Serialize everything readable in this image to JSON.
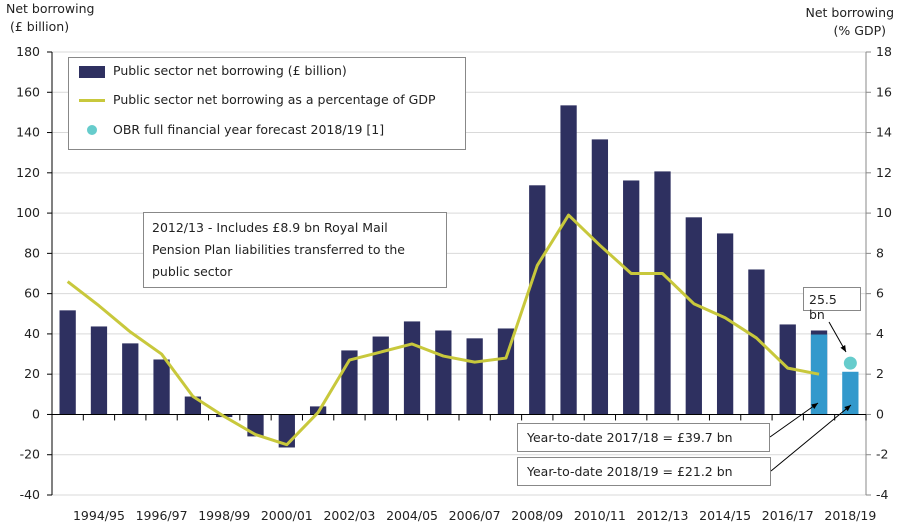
{
  "chart_data": {
    "type": "bar",
    "ylabel_left": "Net borrowing (£ billion)",
    "ylabel_left_lines": [
      "Net borrowing",
      "(£ billion)"
    ],
    "ylabel_right_lines": [
      "Net borrowing",
      "(% GDP)"
    ],
    "ylim_left": [
      -40,
      180
    ],
    "ylim_right": [
      -4,
      18
    ],
    "yticks_left": [
      180,
      160,
      140,
      120,
      100,
      80,
      60,
      40,
      20,
      0,
      -20,
      -40
    ],
    "yticks_right": [
      18,
      16,
      14,
      12,
      10,
      8,
      6,
      4,
      2,
      0,
      -2,
      -4
    ],
    "grid": true,
    "categories": [
      "1993/94",
      "1994/95",
      "1995/96",
      "1996/97",
      "1997/98",
      "1998/99",
      "1999/00",
      "2000/01",
      "2001/02",
      "2002/03",
      "2003/04",
      "2004/05",
      "2005/06",
      "2006/07",
      "2007/08",
      "2008/09",
      "2009/10",
      "2010/11",
      "2011/12",
      "2012/13",
      "2013/14",
      "2014/15",
      "2015/16",
      "2016/17",
      "2017/18",
      "2018/19"
    ],
    "xtick_labels": [
      "1994/95",
      "1996/97",
      "1998/99",
      "2000/01",
      "2002/03",
      "2004/05",
      "2006/07",
      "2008/09",
      "2010/11",
      "2012/13",
      "2014/15",
      "2016/17",
      "2018/19"
    ],
    "series": [
      {
        "name": "Public sector net borrowing (£ billion)",
        "type": "bar",
        "axis": "left",
        "color": "#2e3060",
        "values": [
          51.7,
          43.7,
          35.3,
          27.3,
          8.9,
          -1.3,
          -10.9,
          -16.4,
          4.0,
          31.8,
          38.7,
          46.2,
          41.7,
          37.8,
          42.7,
          113.8,
          153.5,
          136.6,
          116.2,
          120.7,
          97.9,
          89.9,
          72.0,
          44.7,
          41.7,
          null
        ]
      },
      {
        "name": "Year-to-date",
        "type": "bar",
        "axis": "left",
        "color": "#3399cc",
        "values": [
          null,
          null,
          null,
          null,
          null,
          null,
          null,
          null,
          null,
          null,
          null,
          null,
          null,
          null,
          null,
          null,
          null,
          null,
          null,
          null,
          null,
          null,
          null,
          null,
          39.7,
          21.2
        ]
      },
      {
        "name": "Public sector net borrowing as a percentage of GDP",
        "type": "line",
        "axis": "right",
        "color": "#c8c83c",
        "values": [
          6.6,
          5.4,
          4.1,
          3.0,
          0.9,
          -0.1,
          -1.0,
          -1.5,
          0.1,
          2.7,
          3.1,
          3.5,
          2.9,
          2.6,
          2.8,
          7.4,
          9.9,
          8.4,
          7.0,
          7.0,
          5.5,
          4.8,
          3.8,
          2.3,
          2.0,
          null
        ]
      },
      {
        "name": "OBR full financial year forecast 2018/19 [1]",
        "type": "scatter",
        "axis": "left",
        "color": "#66cccc",
        "points": [
          {
            "x": "2018/19",
            "y": 25.5
          }
        ]
      }
    ],
    "legend": {
      "placement": "top-left",
      "entries": [
        "Public sector net borrowing (£ billion)",
        "Public sector net borrowing as a percentage of GDP",
        "OBR full financial year forecast 2018/19 [1]"
      ]
    },
    "annotations": {
      "royal_mail": [
        "2012/13 - Includes £8.9 bn Royal Mail",
        "Pension Plan liabilities transferred to the",
        "public sector"
      ],
      "forecast": "25.5 bn",
      "ytd_1718": "Year-to-date 2017/18 = £39.7 bn",
      "ytd_1819": "Year-to-date 2018/19 = £21.2 bn"
    }
  }
}
